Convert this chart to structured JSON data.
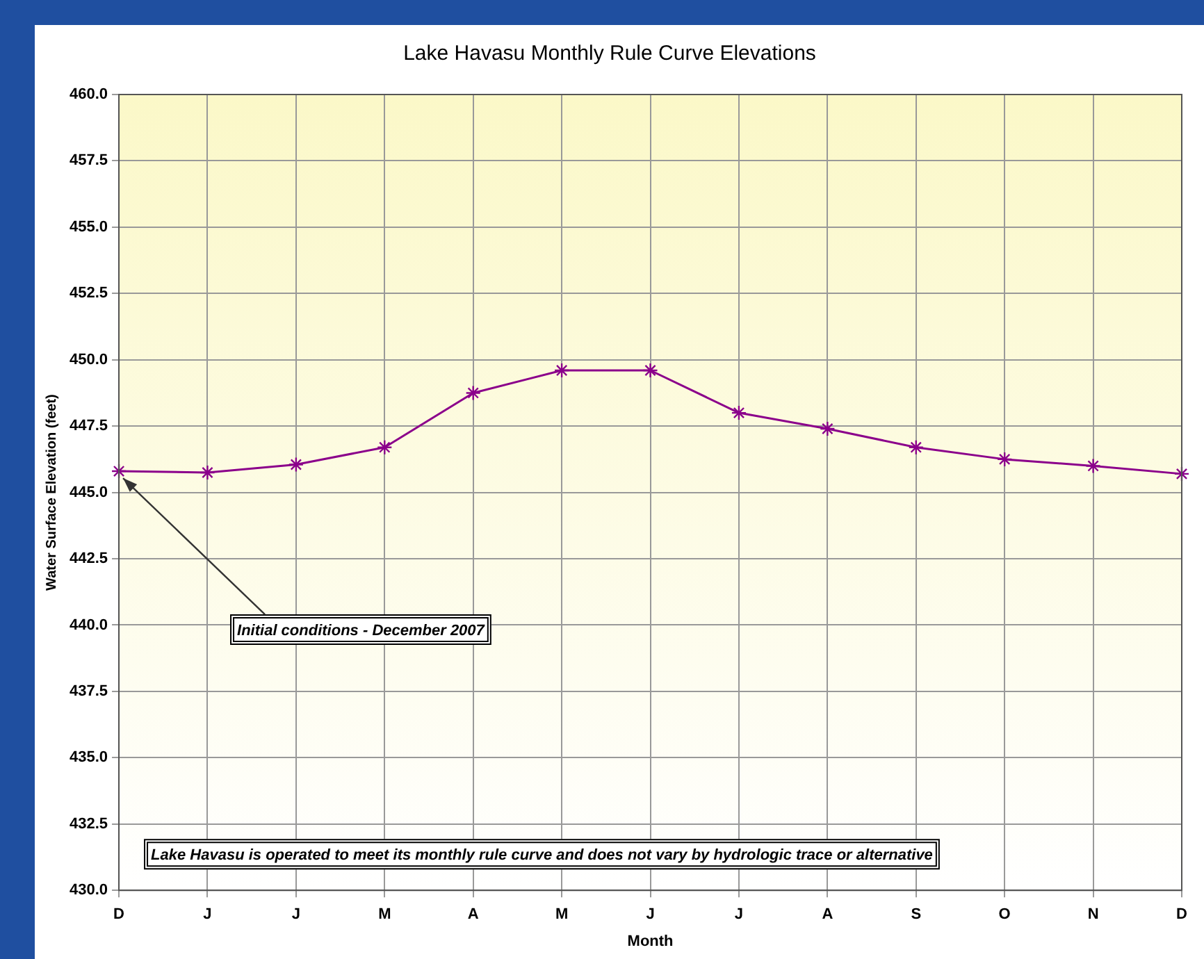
{
  "chart_data": {
    "type": "line",
    "title": "Lake Havasu Monthly Rule Curve Elevations",
    "xlabel": "Month",
    "ylabel": "Water Surface Elevation (feet)",
    "categories": [
      "D",
      "J",
      "J",
      "M",
      "A",
      "M",
      "J",
      "J",
      "A",
      "S",
      "O",
      "N",
      "D"
    ],
    "series": [
      {
        "color": "#8b008b",
        "values": [
          445.8,
          445.75,
          446.05,
          446.7,
          448.75,
          449.6,
          449.6,
          448.0,
          447.4,
          446.7,
          446.25,
          446.0,
          445.7
        ]
      }
    ],
    "ylim": [
      430,
      460
    ],
    "yticks": [
      {
        "value": 430,
        "label": "430.0"
      },
      {
        "value": 432.5,
        "label": "432.5"
      },
      {
        "value": 435,
        "label": "435.0"
      },
      {
        "value": 437.5,
        "label": "437.5"
      },
      {
        "value": 440,
        "label": "440.0"
      },
      {
        "value": 442.5,
        "label": "442.5"
      },
      {
        "value": 445,
        "label": "445.0"
      },
      {
        "value": 447.5,
        "label": "447.5"
      },
      {
        "value": 450,
        "label": "450.0"
      },
      {
        "value": 452.5,
        "label": "452.5"
      },
      {
        "value": 455,
        "label": "455.0"
      },
      {
        "value": 457.5,
        "label": "457.5"
      },
      {
        "value": 460,
        "label": "460.0"
      }
    ],
    "grid": true,
    "legend": false,
    "marker": "cross",
    "line_style": "solid",
    "annotations": [
      {
        "text": "Initial conditions - December 2007",
        "x": "D",
        "y": 445.8
      },
      "Lake Havasu is operated to meet its monthly rule curve and does not vary by hydrologic trace or alternative"
    ]
  }
}
